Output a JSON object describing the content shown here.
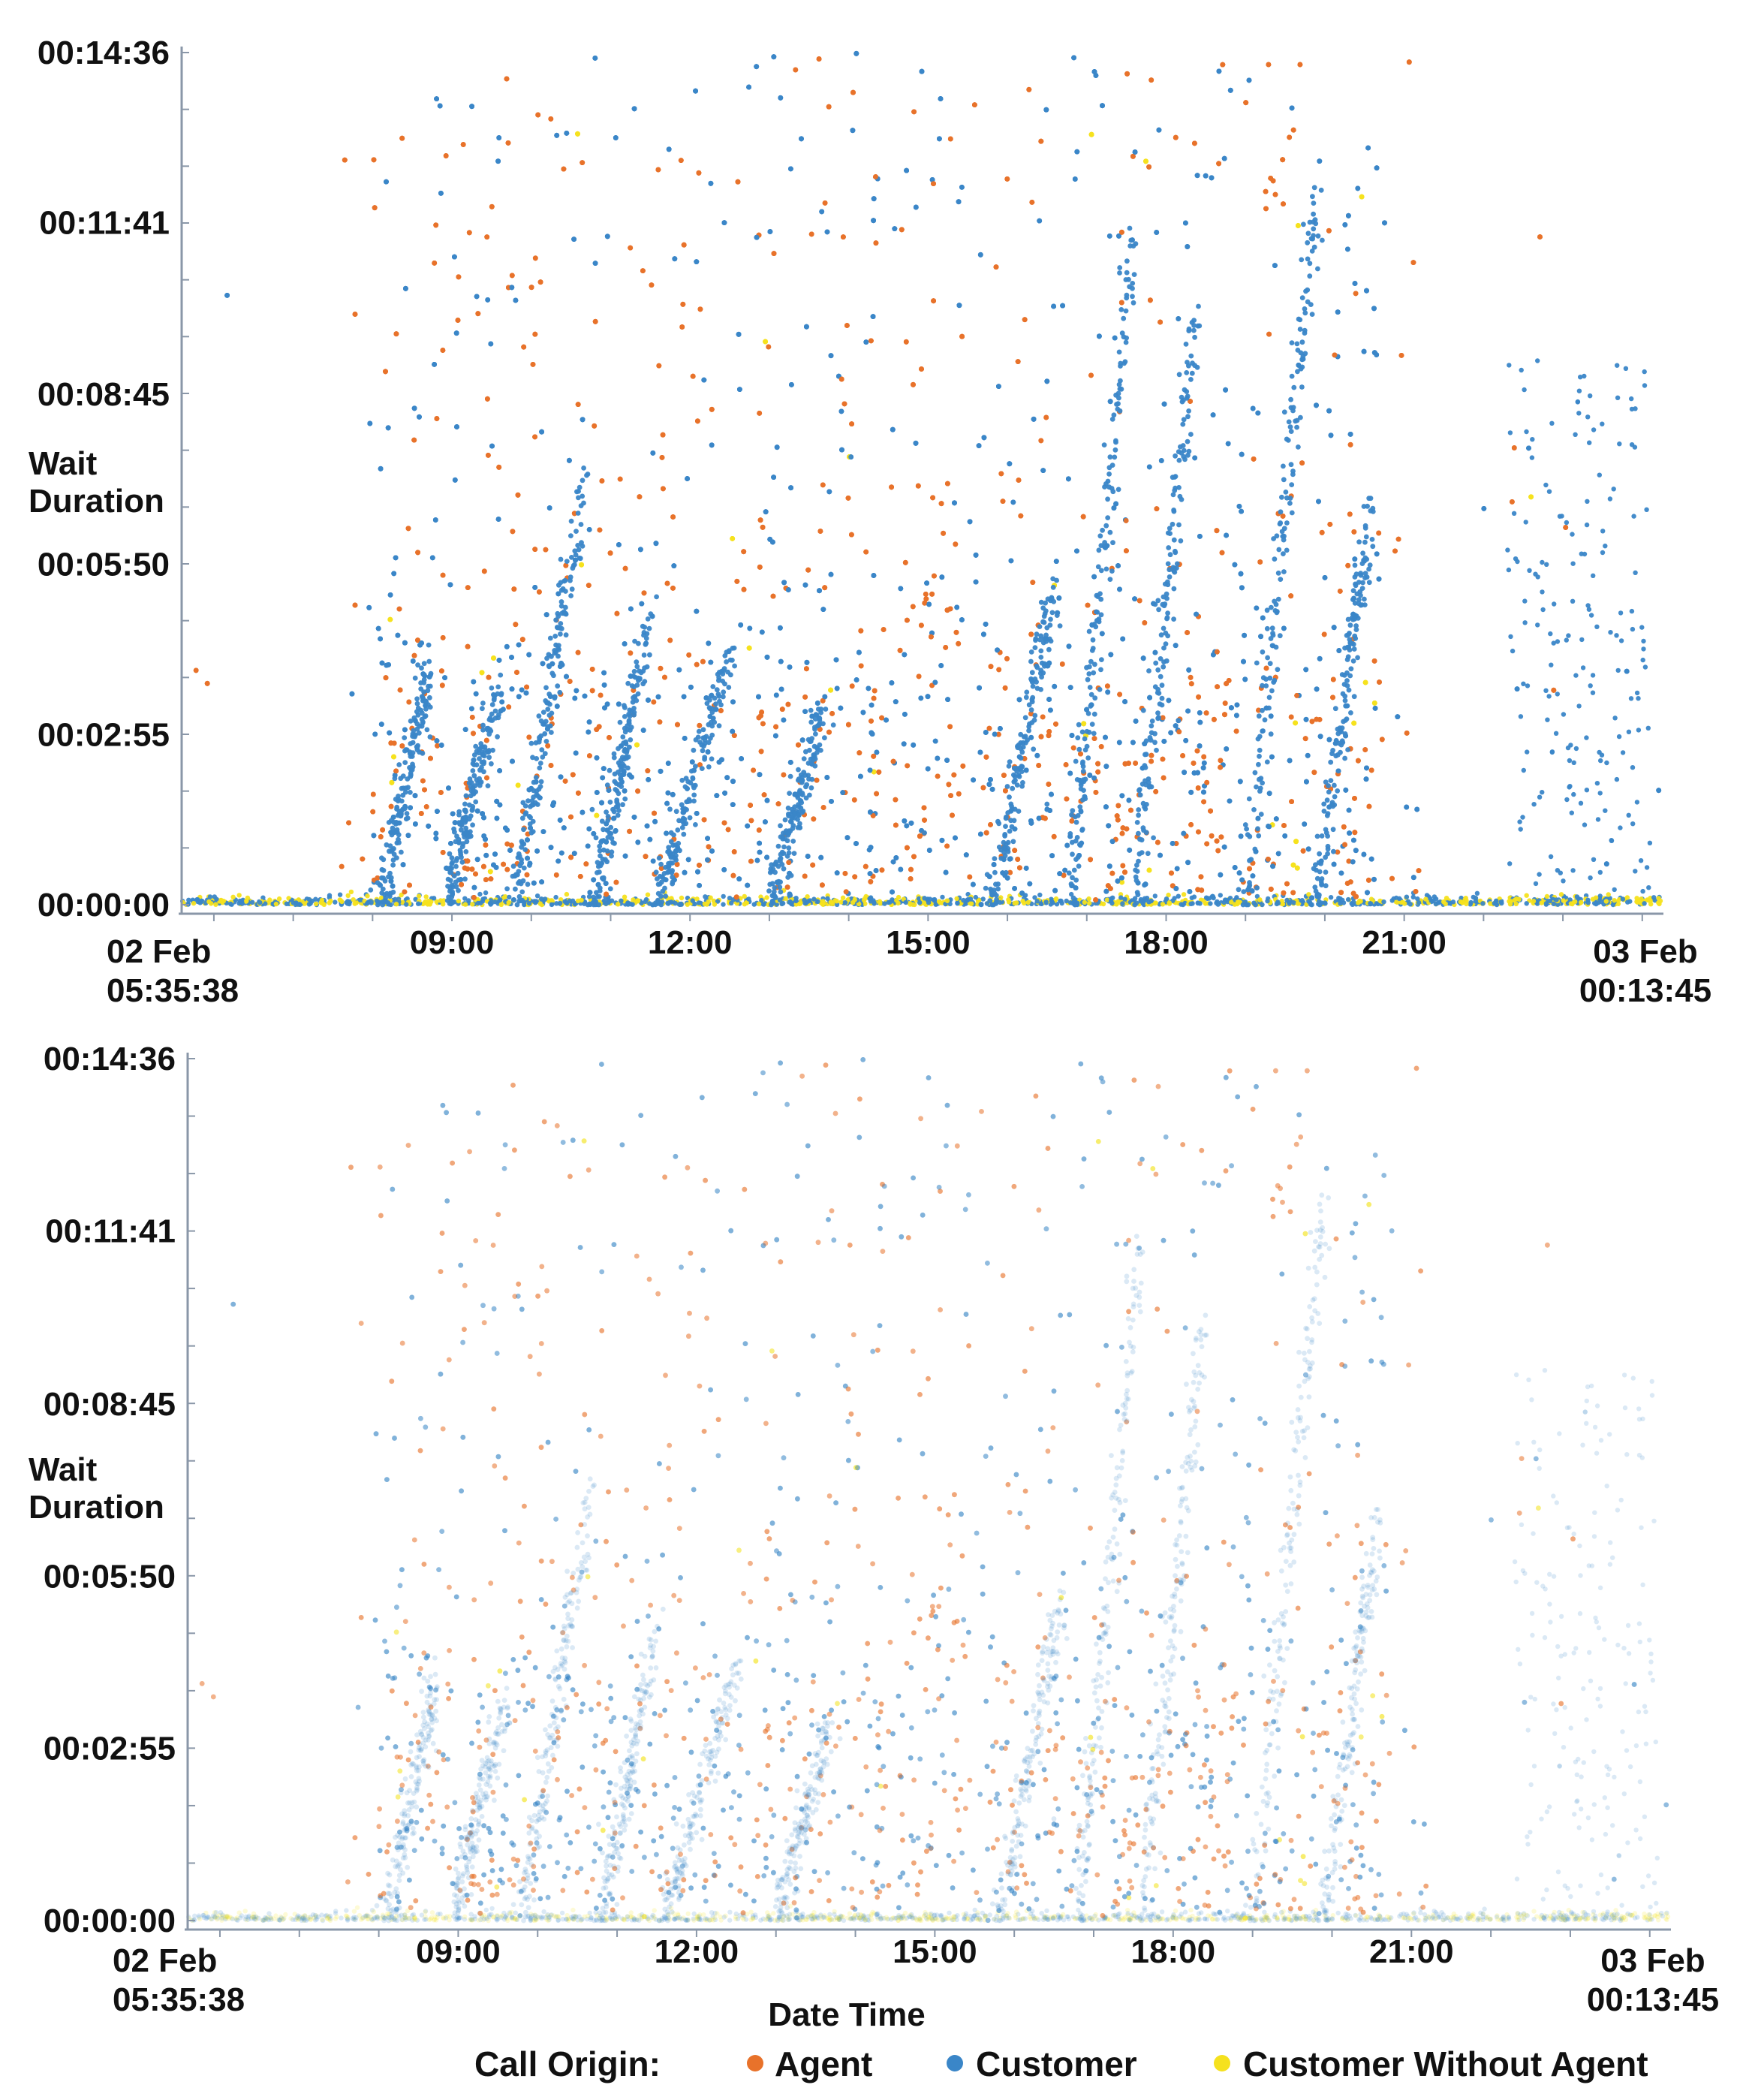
{
  "chart_data": [
    {
      "type": "scatter",
      "panel": "opaque",
      "ylabel": "Wait Duration",
      "y_tick_labels": [
        "00:00:00",
        "00:02:55",
        "00:05:50",
        "00:08:45",
        "00:11:41",
        "00:14:36"
      ],
      "y_ticks_seconds": [
        0,
        175,
        350,
        525,
        701,
        876
      ],
      "ylim_seconds": [
        0,
        876
      ],
      "x_tick_labels": [
        [
          "02 Feb",
          "05:35:38"
        ],
        [
          "09:00"
        ],
        [
          "12:00"
        ],
        [
          "15:00"
        ],
        [
          "18:00"
        ],
        [
          "21:00"
        ],
        [
          "03 Feb",
          "00:13:45"
        ]
      ],
      "x_ticks_hours": [
        5.594,
        9,
        12,
        15,
        18,
        21,
        24.229
      ],
      "xlim_hours": [
        5.594,
        24.229
      ],
      "point_opacity": 0.95,
      "series": [
        {
          "name": "Agent",
          "color": "#e8722a"
        },
        {
          "name": "Customer",
          "color": "#3a86c8"
        },
        {
          "name": "Customer Without Agent",
          "color": "#f5e11e"
        }
      ],
      "grid": false
    },
    {
      "type": "scatter",
      "panel": "transparent",
      "ylabel": "Wait Duration",
      "xlabel": "Date Time",
      "y_tick_labels": [
        "00:00:00",
        "00:02:55",
        "00:05:50",
        "00:08:45",
        "00:11:41",
        "00:14:36"
      ],
      "y_ticks_seconds": [
        0,
        175,
        350,
        525,
        701,
        876
      ],
      "ylim_seconds": [
        0,
        876
      ],
      "x_tick_labels": [
        [
          "02 Feb",
          "05:35:38"
        ],
        [
          "09:00"
        ],
        [
          "12:00"
        ],
        [
          "15:00"
        ],
        [
          "18:00"
        ],
        [
          "21:00"
        ],
        [
          "03 Feb",
          "00:13:45"
        ]
      ],
      "x_ticks_hours": [
        5.594,
        9,
        12,
        15,
        18,
        21,
        24.229
      ],
      "xlim_hours": [
        5.594,
        24.229
      ],
      "point_opacity": 0.18,
      "series": [
        {
          "name": "Agent",
          "color": "#e8722a"
        },
        {
          "name": "Customer",
          "color": "#3a86c8"
        },
        {
          "name": "Customer Without Agent",
          "color": "#f5e11e"
        }
      ],
      "grid": false
    }
  ],
  "legend": {
    "title": "Call Origin:",
    "placement": "bottom",
    "items": [
      {
        "label": "Agent",
        "color": "#e8722a"
      },
      {
        "label": "Customer",
        "color": "#3a86c8"
      },
      {
        "label": "Customer Without Agent",
        "color": "#f5e11e"
      }
    ]
  }
}
